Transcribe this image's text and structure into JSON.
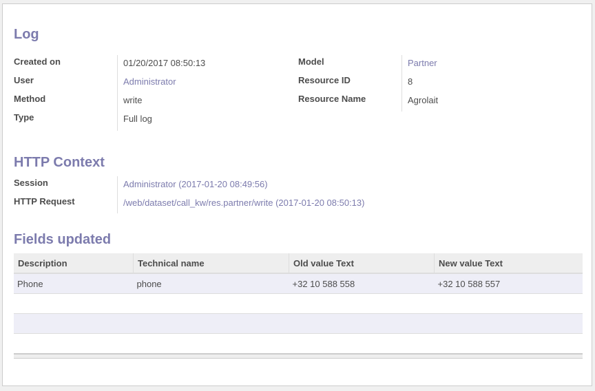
{
  "log": {
    "title": "Log",
    "left": [
      {
        "label": "Created on",
        "value": "01/20/2017 08:50:13"
      },
      {
        "label": "User",
        "value": "Administrator"
      },
      {
        "label": "Method",
        "value": "write"
      },
      {
        "label": "Type",
        "value": "Full log"
      }
    ],
    "right": [
      {
        "label": "Model",
        "value": "Partner"
      },
      {
        "label": "Resource ID",
        "value": "8"
      },
      {
        "label": "Resource Name",
        "value": "Agrolait"
      }
    ]
  },
  "http": {
    "title": "HTTP Context",
    "rows": [
      {
        "label": "Session",
        "value": "Administrator (2017-01-20 08:49:56)"
      },
      {
        "label": "HTTP Request",
        "value": "/web/dataset/call_kw/res.partner/write (2017-01-20 08:50:13)"
      }
    ]
  },
  "fields": {
    "title": "Fields updated",
    "columns": [
      "Description",
      "Technical name",
      "Old value Text",
      "New value Text"
    ],
    "rows": [
      [
        "Phone",
        "phone",
        "+32 10 588 558",
        "+32 10 588 557"
      ]
    ]
  }
}
